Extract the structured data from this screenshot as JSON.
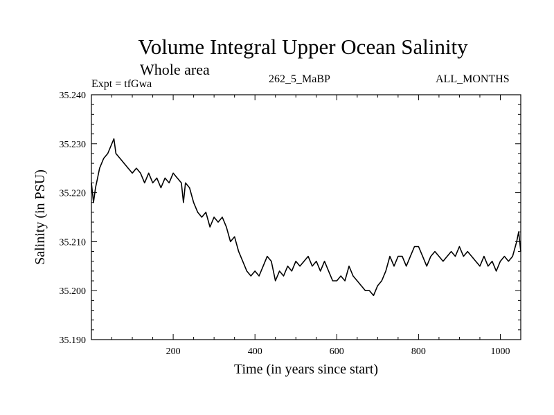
{
  "header": {
    "title": "Volume Integral Upper Ocean Salinity",
    "subtitle": "Whole area",
    "experiment": "Expt = tfGwa",
    "experiment_name": "262_5_MaBP",
    "months": "ALL_MONTHS"
  },
  "chart_data": {
    "type": "line",
    "title": "Volume Integral Upper Ocean Salinity",
    "subtitle": "Whole area",
    "xlabel": "Time (in years since start)",
    "ylabel": "Salinity (in PSU)",
    "xlim": [
      0,
      1050
    ],
    "ylim": [
      35.19,
      35.24
    ],
    "x_ticks": [
      200,
      400,
      600,
      800,
      1000
    ],
    "x_tick_labels": [
      "200",
      "400",
      "600",
      "800",
      "1000"
    ],
    "y_ticks": [
      35.19,
      35.2,
      35.21,
      35.22,
      35.23,
      35.24
    ],
    "y_tick_labels": [
      "35.190",
      "35.200",
      "35.210",
      "35.220",
      "35.230",
      "35.240"
    ],
    "grid": false,
    "series": [
      {
        "name": "Salinity",
        "color": "#000000",
        "x": [
          0,
          5,
          10,
          15,
          20,
          30,
          40,
          50,
          55,
          60,
          70,
          80,
          90,
          100,
          110,
          120,
          130,
          140,
          150,
          160,
          170,
          180,
          190,
          200,
          210,
          220,
          225,
          230,
          240,
          250,
          260,
          270,
          280,
          290,
          300,
          310,
          320,
          330,
          340,
          350,
          360,
          370,
          380,
          390,
          400,
          410,
          420,
          430,
          440,
          450,
          460,
          470,
          480,
          490,
          500,
          510,
          520,
          530,
          540,
          550,
          560,
          570,
          580,
          590,
          600,
          610,
          620,
          630,
          640,
          650,
          660,
          670,
          680,
          690,
          700,
          710,
          720,
          730,
          740,
          750,
          760,
          770,
          780,
          790,
          800,
          810,
          820,
          830,
          840,
          850,
          860,
          870,
          880,
          890,
          900,
          910,
          920,
          930,
          940,
          950,
          960,
          970,
          980,
          990,
          1000,
          1010,
          1020,
          1030,
          1040,
          1045,
          1050
        ],
        "y": [
          35.222,
          35.218,
          35.221,
          35.223,
          35.225,
          35.227,
          35.228,
          35.23,
          35.231,
          35.228,
          35.227,
          35.226,
          35.225,
          35.224,
          35.225,
          35.224,
          35.222,
          35.224,
          35.222,
          35.223,
          35.221,
          35.223,
          35.222,
          35.224,
          35.223,
          35.222,
          35.218,
          35.222,
          35.221,
          35.218,
          35.216,
          35.215,
          35.216,
          35.213,
          35.215,
          35.214,
          35.215,
          35.213,
          35.21,
          35.211,
          35.208,
          35.206,
          35.204,
          35.203,
          35.204,
          35.203,
          35.205,
          35.207,
          35.206,
          35.202,
          35.204,
          35.203,
          35.205,
          35.204,
          35.206,
          35.205,
          35.206,
          35.207,
          35.205,
          35.206,
          35.204,
          35.206,
          35.204,
          35.202,
          35.202,
          35.203,
          35.202,
          35.205,
          35.203,
          35.202,
          35.201,
          35.2,
          35.2,
          35.199,
          35.201,
          35.202,
          35.204,
          35.207,
          35.205,
          35.207,
          35.207,
          35.205,
          35.207,
          35.209,
          35.209,
          35.207,
          35.205,
          35.207,
          35.208,
          35.207,
          35.206,
          35.207,
          35.208,
          35.207,
          35.209,
          35.207,
          35.208,
          35.207,
          35.206,
          35.205,
          35.207,
          35.205,
          35.206,
          35.204,
          35.206,
          35.207,
          35.206,
          35.207,
          35.21,
          35.212,
          35.208
        ]
      }
    ]
  }
}
